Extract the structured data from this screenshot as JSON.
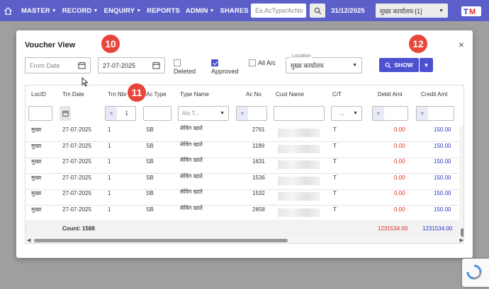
{
  "navbar": {
    "menu": [
      "MASTER",
      "RECORD",
      "ENQUIRY",
      "REPORTS",
      "ADMIN",
      "SHARES"
    ],
    "menu_has_caret": [
      true,
      true,
      true,
      false,
      true,
      true
    ],
    "search_placeholder": "Ex.AcType/AcNo",
    "date": "31/12/2025",
    "branch": "मुख्य कार्यालय-[1]",
    "colors": {
      "navbar": "#5b5fc7",
      "accent": "#4c51d1",
      "badge": "#e8463a"
    }
  },
  "modal": {
    "title": "Voucher View",
    "from_date_placeholder": "From Date",
    "to_date_value": "27-07-2025",
    "deleted_label": "Deleted",
    "approved_label": "Approved",
    "all_ac_label": "All A/c",
    "location_label": "Location",
    "location_value": "मुख्य कार्यालय",
    "show_label": "SHOW",
    "close": "×",
    "deleted_checked": false,
    "approved_checked": true,
    "all_ac_checked": false
  },
  "badges": [
    "10",
    "11",
    "12"
  ],
  "grid": {
    "columns": [
      "LocID",
      "Trn Date",
      "Trn Nbr",
      "Ac Type",
      "Type Name",
      "Ac No",
      "Cust Name",
      "C/T",
      "Debit Amt",
      "Credit Amt"
    ],
    "filters": {
      "trn_nbr_op": "=",
      "trn_nbr_value": "1",
      "type_name_placeholder": "A/c T...",
      "ac_no_op": "=",
      "ct_value": "...",
      "debit_op": "=",
      "credit_op": "="
    },
    "rows": [
      [
        "मुख्य",
        "27-07-2025",
        "1",
        "SB",
        "सेविंग खाते",
        "2761",
        "",
        "T",
        "0.00",
        "150.00"
      ],
      [
        "मुख्य",
        "27-07-2025",
        "1",
        "SB",
        "सेविंग खाते",
        "1189",
        "",
        "T",
        "0.00",
        "150.00"
      ],
      [
        "मुख्य",
        "27-07-2025",
        "1",
        "SB",
        "सेविंग खाते",
        "1631",
        "",
        "T",
        "0.00",
        "150.00"
      ],
      [
        "मुख्य",
        "27-07-2025",
        "1",
        "SB",
        "सेविंग खाते",
        "1536",
        "",
        "T",
        "0.00",
        "150.00"
      ],
      [
        "मुख्य",
        "27-07-2025",
        "1",
        "SB",
        "सेविंग खाते",
        "1532",
        "",
        "T",
        "0.00",
        "150.00"
      ],
      [
        "मुख्य",
        "27-07-2025",
        "1",
        "SB",
        "सेविंग खाते",
        "2658",
        "",
        "T",
        "0.00",
        "150.00"
      ]
    ],
    "footer": {
      "count": "Count: 1588",
      "debit_total": "1231534.00",
      "credit_total": "1231534.00"
    }
  }
}
